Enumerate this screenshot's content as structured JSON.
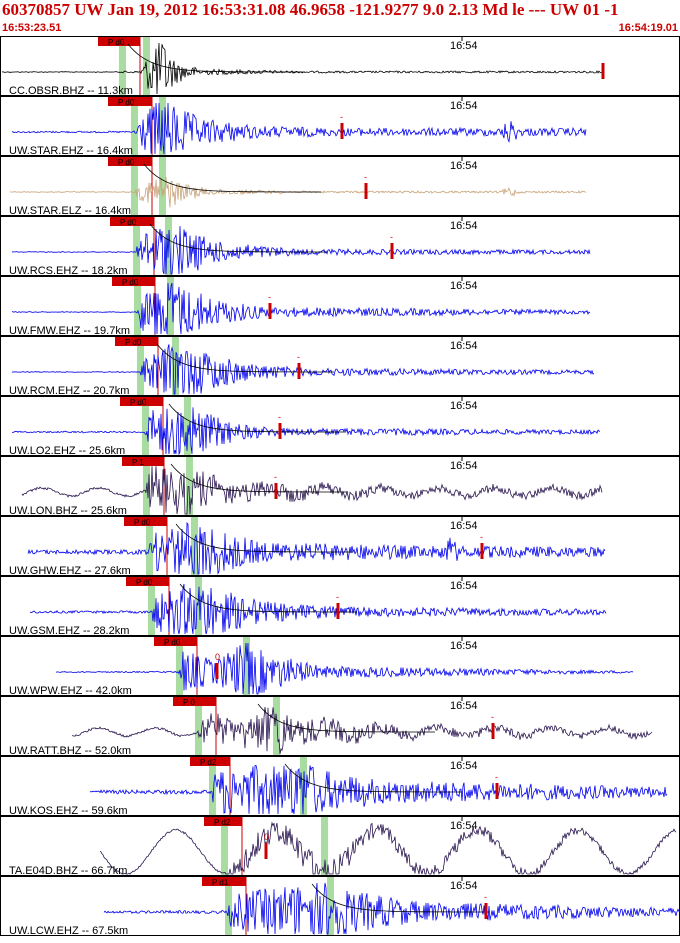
{
  "header": {
    "title": "60370857 UW Jan 19, 2012 16:53:31.08   46.9658 -121.9277  9.0 2.13 Md le --- UW 01  -1",
    "start_time": "16:53:23.51",
    "end_time": "16:54:19.01"
  },
  "chart_data": {
    "type": "line",
    "title": "60370857 UW Jan 19, 2012 16:53:31.08   46.9658 -121.9277  9.0 2.13 Md le --- UW 01  -1",
    "x_range": [
      "16:53:23.51",
      "16:54:19.01"
    ],
    "x_tick_label": "16:54",
    "grid": false,
    "colors": {
      "blue": "#0000ee",
      "tan": "#c8a47a",
      "dark": "#2a1650",
      "black": "#000000",
      "pick": "#cc0000",
      "window": "#a8dca0",
      "frame": "#000000"
    },
    "series": [
      {
        "name": "CC.OBSR.BHZ -- 11.3km",
        "color": "black",
        "p": 122,
        "s": 146,
        "end": 152,
        "amp_mark": 603,
        "start": 2,
        "stop": 603,
        "pick": {
          "label": "P d0",
          "x": 98
        },
        "coda_label": "",
        "env": [
          [
            140,
            1
          ],
          [
            152,
            26
          ],
          [
            160,
            38
          ],
          [
            175,
            12
          ],
          [
            200,
            3
          ],
          [
            300,
            1
          ],
          [
            600,
            1
          ]
        ],
        "wave": "burst",
        "tail": true
      },
      {
        "name": "UW.STAR.EHZ -- 16.4km",
        "color": "blue",
        "p": 134,
        "s": 162,
        "end": 168,
        "amp_mark": 342,
        "start": 12,
        "stop": 586,
        "pick": {
          "label": "P d0",
          "x": 108
        },
        "coda_label": "-",
        "env": [
          [
            134,
            2
          ],
          [
            140,
            16
          ],
          [
            160,
            34
          ],
          [
            170,
            30
          ],
          [
            200,
            14
          ],
          [
            260,
            6
          ],
          [
            340,
            4
          ],
          [
            500,
            4
          ],
          [
            510,
            14
          ],
          [
            520,
            4
          ],
          [
            586,
            4
          ]
        ],
        "wave": "noise",
        "tail": false
      },
      {
        "name": "UW.STAR.ELZ -- 16.4km",
        "color": "tan",
        "p": 134,
        "s": 162,
        "end": 168,
        "amp_mark": 366,
        "start": 10,
        "stop": 586,
        "pick": {
          "label": "P d0",
          "x": 108
        },
        "coda_label": "-",
        "env": [
          [
            134,
            1
          ],
          [
            140,
            8
          ],
          [
            165,
            20
          ],
          [
            180,
            10
          ],
          [
            210,
            3
          ],
          [
            300,
            1
          ],
          [
            500,
            1
          ],
          [
            510,
            6
          ],
          [
            520,
            1
          ],
          [
            586,
            1
          ]
        ],
        "wave": "noise",
        "tail": true
      },
      {
        "name": "UW.RCS.EHZ -- 18.2km",
        "color": "blue",
        "p": 136,
        "s": 168,
        "end": 174,
        "amp_mark": 392,
        "start": 12,
        "stop": 590,
        "pick": {
          "label": "P d0",
          "x": 110
        },
        "coda_label": "-",
        "env": [
          [
            136,
            1
          ],
          [
            140,
            20
          ],
          [
            170,
            34
          ],
          [
            185,
            24
          ],
          [
            220,
            10
          ],
          [
            300,
            3
          ],
          [
            590,
            2
          ]
        ],
        "wave": "noise",
        "tail": true
      },
      {
        "name": "UW.FMW.EHZ -- 19.7km",
        "color": "blue",
        "p": 137,
        "s": 170,
        "end": 176,
        "amp_mark": 270,
        "start": 12,
        "stop": 590,
        "pick": {
          "label": "P d0",
          "x": 112
        },
        "coda_label": "-",
        "env": [
          [
            137,
            1
          ],
          [
            140,
            18
          ],
          [
            172,
            36
          ],
          [
            185,
            26
          ],
          [
            220,
            12
          ],
          [
            270,
            5
          ],
          [
            590,
            2
          ]
        ],
        "wave": "noise",
        "tail": false
      },
      {
        "name": "UW.RCM.EHZ -- 20.7km",
        "color": "blue",
        "p": 140,
        "s": 175,
        "end": 181,
        "amp_mark": 299,
        "start": 12,
        "stop": 594,
        "pick": {
          "label": "P d0",
          "x": 115
        },
        "coda_label": "-",
        "env": [
          [
            140,
            1
          ],
          [
            145,
            14
          ],
          [
            178,
            34
          ],
          [
            195,
            26
          ],
          [
            240,
            10
          ],
          [
            300,
            4
          ],
          [
            594,
            2
          ]
        ],
        "wave": "noise",
        "tail": true
      },
      {
        "name": "UW.LO2.EHZ -- 25.6km",
        "color": "blue",
        "p": 145,
        "s": 187,
        "end": 193,
        "amp_mark": 280,
        "start": 12,
        "stop": 600,
        "pick": {
          "label": "P d0",
          "x": 120
        },
        "coda_label": "-",
        "env": [
          [
            145,
            2
          ],
          [
            148,
            22
          ],
          [
            190,
            30
          ],
          [
            205,
            20
          ],
          [
            240,
            8
          ],
          [
            280,
            4
          ],
          [
            600,
            2
          ]
        ],
        "wave": "noise",
        "tail": true
      },
      {
        "name": "UW.LON.BHZ -- 25.6km",
        "color": "dark",
        "p": 146,
        "s": 189,
        "end": 195,
        "amp_mark": 276,
        "start": 22,
        "stop": 602,
        "pick": {
          "label": "P 1",
          "x": 122
        },
        "coda_label": "-",
        "env": [
          [
            146,
            3
          ],
          [
            150,
            22
          ],
          [
            192,
            26
          ],
          [
            210,
            14
          ],
          [
            275,
            8
          ],
          [
            400,
            4
          ],
          [
            602,
            4
          ]
        ],
        "wave": "swell",
        "tail": true
      },
      {
        "name": "UW.GHW.EHZ -- 27.6km",
        "color": "blue",
        "p": 149,
        "s": 194,
        "end": 200,
        "amp_mark": 482,
        "start": 28,
        "stop": 605,
        "pick": {
          "label": "P d0",
          "x": 124
        },
        "coda_label": "-",
        "env": [
          [
            28,
            5
          ],
          [
            149,
            6
          ],
          [
            152,
            18
          ],
          [
            198,
            34
          ],
          [
            215,
            24
          ],
          [
            260,
            10
          ],
          [
            440,
            6
          ],
          [
            450,
            16
          ],
          [
            460,
            6
          ],
          [
            605,
            5
          ]
        ],
        "wave": "noise",
        "tail": true
      },
      {
        "name": "UW.GSM.EHZ -- 28.2km",
        "color": "blue",
        "p": 151,
        "s": 198,
        "end": 204,
        "amp_mark": 338,
        "start": 30,
        "stop": 606,
        "pick": {
          "label": "P d0",
          "x": 126
        },
        "coda_label": "-",
        "env": [
          [
            30,
            3
          ],
          [
            151,
            3
          ],
          [
            155,
            18
          ],
          [
            201,
            34
          ],
          [
            220,
            22
          ],
          [
            270,
            10
          ],
          [
            340,
            5
          ],
          [
            606,
            3
          ]
        ],
        "wave": "noise",
        "tail": true
      },
      {
        "name": "UW.WPW.EHZ -- 42.0km",
        "color": "blue",
        "p": 179,
        "s": 246,
        "end": 252,
        "amp_mark": 217,
        "start": 56,
        "stop": 633,
        "pick": {
          "label": "P d0",
          "x": 154
        },
        "coda_label": "0",
        "env": [
          [
            56,
            1
          ],
          [
            179,
            2
          ],
          [
            182,
            22
          ],
          [
            215,
            12
          ],
          [
            249,
            34
          ],
          [
            265,
            20
          ],
          [
            320,
            6
          ],
          [
            633,
            1
          ]
        ],
        "wave": "noise",
        "tail": false
      },
      {
        "name": "UW.RATT.BHZ -- 52.0km",
        "color": "dark",
        "p": 198,
        "s": 276,
        "end": 282,
        "amp_mark": 493,
        "start": 72,
        "stop": 652,
        "pick": {
          "label": "P 0",
          "x": 173
        },
        "coda_label": "-",
        "env": [
          [
            72,
            3
          ],
          [
            198,
            3
          ],
          [
            202,
            16
          ],
          [
            240,
            14
          ],
          [
            279,
            28
          ],
          [
            300,
            14
          ],
          [
            400,
            5
          ],
          [
            652,
            3
          ]
        ],
        "wave": "swell",
        "tail": true
      },
      {
        "name": "UW.KOS.EHZ -- 59.6km",
        "color": "blue",
        "p": 212,
        "s": 303,
        "end": 309,
        "amp_mark": 497,
        "start": 90,
        "stop": 667,
        "pick": {
          "label": "P d2",
          "x": 190
        },
        "coda_label": "-",
        "env": [
          [
            90,
            5
          ],
          [
            212,
            5
          ],
          [
            215,
            22
          ],
          [
            306,
            34
          ],
          [
            320,
            22
          ],
          [
            380,
            12
          ],
          [
            667,
            5
          ]
        ],
        "wave": "noise",
        "tail": true
      },
      {
        "name": "TA.E04D.BHZ -- 66.7km",
        "color": "dark",
        "p": 224,
        "s": 324,
        "end": 330,
        "amp_mark": 266,
        "start": 100,
        "stop": 676,
        "pick": {
          "label": "P d2",
          "x": 204
        },
        "coda_label": "0",
        "env": [
          [
            100,
            2
          ],
          [
            224,
            3
          ],
          [
            230,
            10
          ],
          [
            327,
            16
          ],
          [
            360,
            8
          ],
          [
            676,
            2
          ]
        ],
        "wave": "longswell",
        "tail": false
      },
      {
        "name": "UW.LCW.EHZ -- 67.5km",
        "color": "blue",
        "p": 228,
        "s": 330,
        "end": 336,
        "amp_mark": 486,
        "start": 104,
        "stop": 680,
        "pick": {
          "label": "P d1",
          "x": 202
        },
        "coda_label": "-",
        "env": [
          [
            104,
            3
          ],
          [
            228,
            4
          ],
          [
            232,
            18
          ],
          [
            333,
            34
          ],
          [
            350,
            22
          ],
          [
            420,
            10
          ],
          [
            680,
            4
          ]
        ],
        "wave": "noise",
        "tail": true
      }
    ]
  }
}
